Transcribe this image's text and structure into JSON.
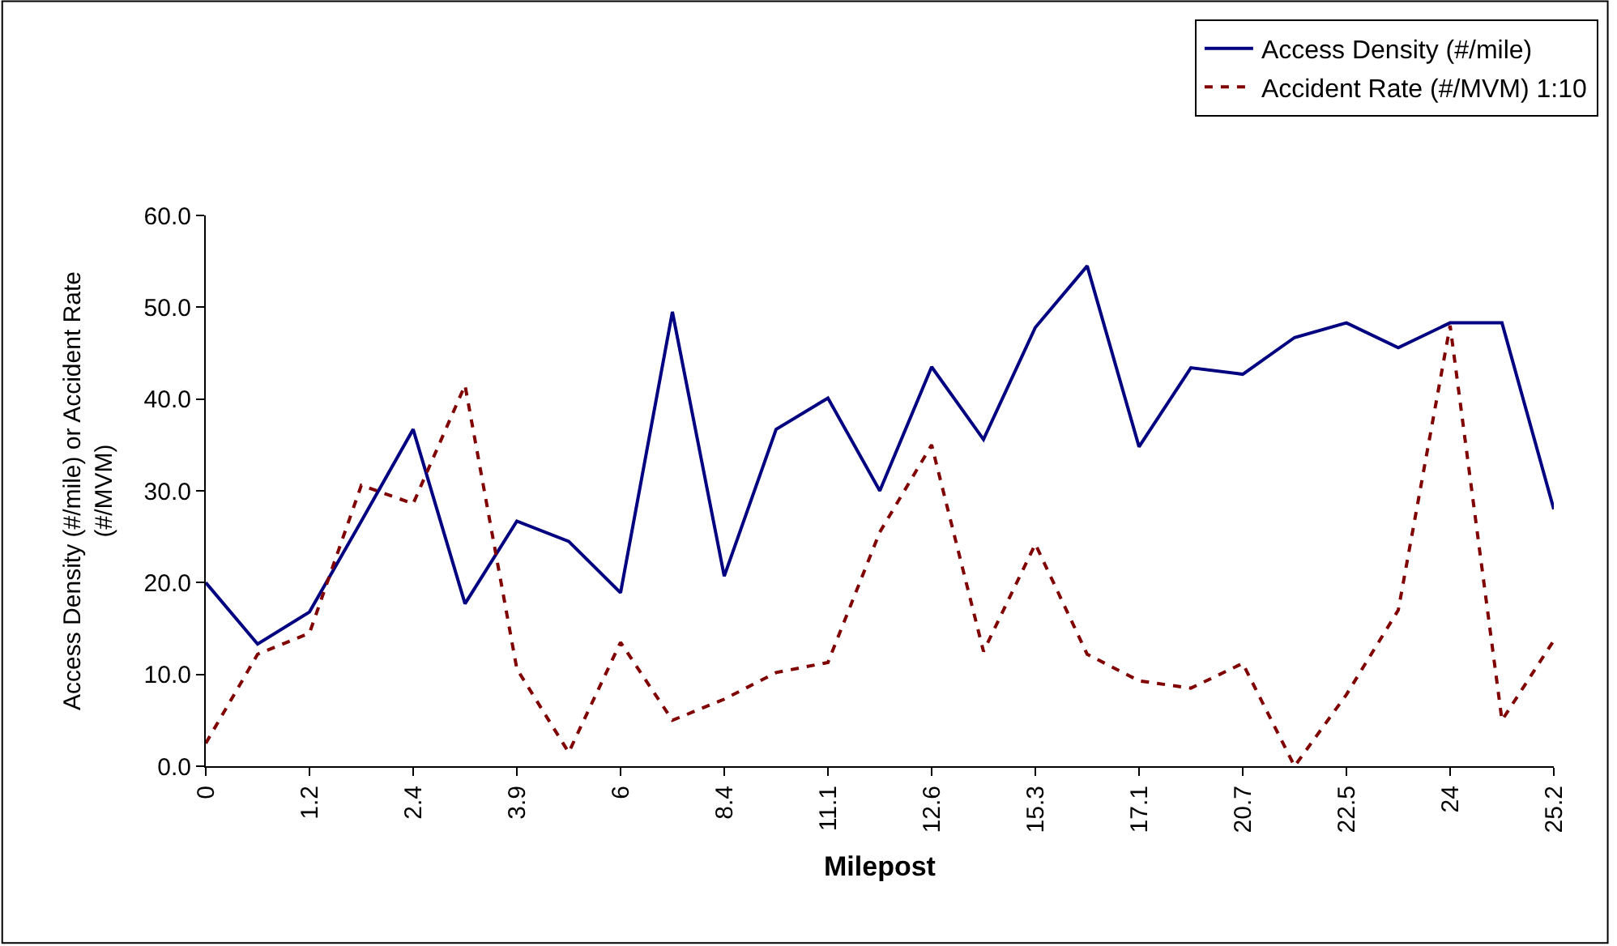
{
  "chart_data": {
    "type": "line",
    "xlabel": "Milepost",
    "ylabel": "Access Density (#/mile) or Accident Rate\n(#/MVM)",
    "categories": [
      "0",
      null,
      "1.2",
      null,
      "2.4",
      null,
      "3.9",
      null,
      "6",
      null,
      "8.4",
      null,
      "11.1",
      null,
      "12.6",
      null,
      "15.3",
      null,
      "17.1",
      null,
      "20.7",
      null,
      "22.5",
      null,
      "24",
      null,
      "25.2"
    ],
    "series": [
      {
        "name": "Access Density (#/mile)",
        "color": "#000080",
        "line_style": "solid",
        "values": [
          20.0,
          13.3,
          16.8,
          26.7,
          36.7,
          17.7,
          26.7,
          24.5,
          18.9,
          49.5,
          20.7,
          36.7,
          40.1,
          30.0,
          43.5,
          35.6,
          47.8,
          54.5,
          34.8,
          43.4,
          42.7,
          46.7,
          48.3,
          45.6,
          48.3,
          48.3,
          28.0
        ]
      },
      {
        "name": "Accident Rate (#/MVM) 1:10",
        "color": "#800000",
        "line_style": "dashed",
        "values": [
          2.5,
          12.2,
          14.5,
          30.6,
          28.6,
          41.5,
          10.6,
          1.5,
          13.5,
          5.0,
          7.3,
          10.2,
          11.3,
          25.5,
          35.0,
          12.5,
          24.2,
          12.2,
          9.3,
          8.5,
          11.2,
          0.0,
          7.8,
          17.0,
          48.0,
          5.0,
          13.7
        ]
      }
    ],
    "ylim": [
      0,
      60
    ],
    "yticks": [
      {
        "value": 0,
        "label": "0.0"
      },
      {
        "value": 10,
        "label": "10.0"
      },
      {
        "value": 20,
        "label": "20.0"
      },
      {
        "value": 30,
        "label": "30.0"
      },
      {
        "value": 40,
        "label": "40.0"
      },
      {
        "value": 50,
        "label": "50.0"
      },
      {
        "value": 60,
        "label": "60.0"
      }
    ],
    "legend": "top right",
    "marker": "none"
  }
}
